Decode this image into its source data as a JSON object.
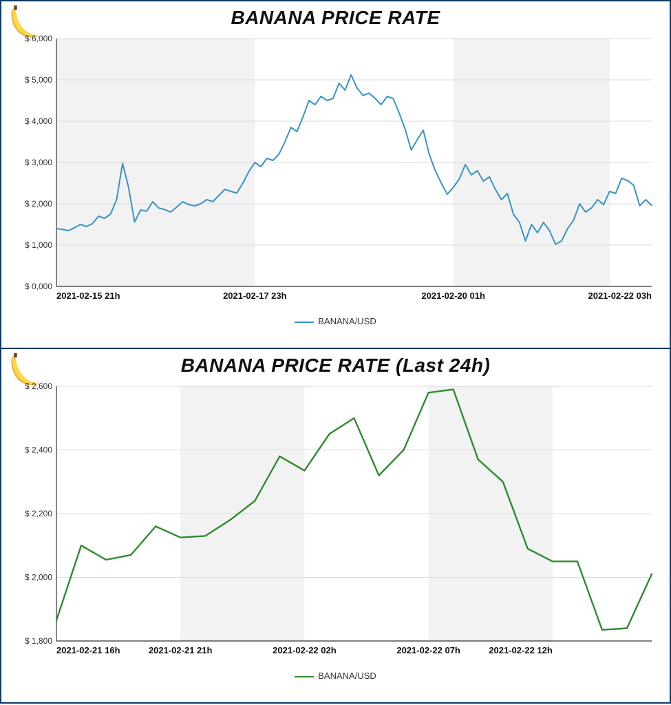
{
  "top_chart": {
    "title": "BANANA PRICE RATE",
    "type": "line",
    "legend_label": "BANANA/USD",
    "line_color": "#3a93c7",
    "line_width": 2,
    "background_color": "#ffffff",
    "alt_band_color": "#f2f2f2",
    "grid_color": "#d9d9d9",
    "axis_color": "#333333",
    "title_color": "#111111",
    "border_color": "#0d3b66",
    "y_label_prefix": "$ ",
    "ylim": [
      0,
      6000
    ],
    "ytick_step": 1000,
    "ytick_labels": [
      "0,000",
      "1,000",
      "2,000",
      "3,000",
      "4,000",
      "5,000",
      "6,000"
    ],
    "y_fontsize": 12,
    "x_fontsize": 13,
    "title_fontsize": 28,
    "num_points": 100,
    "xlim": [
      0,
      99
    ],
    "xticks": [
      {
        "pos": 0,
        "label": "2021-02-15 21h"
      },
      {
        "pos": 33,
        "label": "2021-02-17 23h"
      },
      {
        "pos": 66,
        "label": "2021-02-20 01h"
      },
      {
        "pos": 99,
        "label": "2021-02-22 03h"
      }
    ],
    "bands": [
      {
        "start": 0,
        "end": 33,
        "shaded": true
      },
      {
        "start": 33,
        "end": 66,
        "shaded": false
      },
      {
        "start": 66,
        "end": 92,
        "shaded": true
      },
      {
        "start": 92,
        "end": 99,
        "shaded": false
      }
    ],
    "values": [
      1400,
      1380,
      1350,
      1420,
      1500,
      1450,
      1520,
      1700,
      1650,
      1750,
      2100,
      2980,
      2400,
      1560,
      1850,
      1820,
      2050,
      1900,
      1860,
      1800,
      1920,
      2050,
      1980,
      1950,
      2000,
      2100,
      2050,
      2200,
      2350,
      2300,
      2260,
      2500,
      2780,
      3000,
      2900,
      3100,
      3050,
      3200,
      3500,
      3850,
      3750,
      4100,
      4500,
      4400,
      4600,
      4500,
      4550,
      4920,
      4750,
      5120,
      4800,
      4620,
      4680,
      4550,
      4400,
      4600,
      4550,
      4200,
      3800,
      3300,
      3550,
      3780,
      3200,
      2800,
      2500,
      2230,
      2400,
      2600,
      2950,
      2700,
      2800,
      2550,
      2650,
      2350,
      2100,
      2250,
      1750,
      1550,
      1100,
      1500,
      1300,
      1550,
      1350,
      1020,
      1100,
      1400,
      1600,
      2000,
      1800,
      1900,
      2100,
      1980,
      2300,
      2250,
      2620,
      2560,
      2450,
      1950,
      2100,
      1960
    ]
  },
  "bottom_chart": {
    "title": "BANANA PRICE RATE (Last 24h)",
    "type": "line",
    "legend_label": "BANANA/USD",
    "line_color": "#2e8b2e",
    "line_width": 2.4,
    "background_color": "#ffffff",
    "alt_band_color": "#f2f2f2",
    "grid_color": "#d9d9d9",
    "axis_color": "#333333",
    "title_color": "#111111",
    "border_color": "#0d3b66",
    "y_label_prefix": "$ ",
    "ylim": [
      1800,
      2600
    ],
    "ytick_step": 200,
    "ytick_labels": [
      "1,800",
      "2,000",
      "2,200",
      "2,400",
      "2,600"
    ],
    "y_fontsize": 12,
    "x_fontsize": 13,
    "title_fontsize": 28,
    "num_points": 25,
    "xlim": [
      0,
      24
    ],
    "xticks": [
      {
        "pos": 0,
        "label": "2021-02-21 16h"
      },
      {
        "pos": 5,
        "label": "2021-02-21 21h"
      },
      {
        "pos": 10,
        "label": "2021-02-22 02h"
      },
      {
        "pos": 15,
        "label": "2021-02-22 07h"
      },
      {
        "pos": 20,
        "label": "2021-02-22 12h"
      }
    ],
    "bands": [
      {
        "start": 0,
        "end": 5,
        "shaded": false
      },
      {
        "start": 5,
        "end": 10,
        "shaded": true
      },
      {
        "start": 10,
        "end": 15,
        "shaded": false
      },
      {
        "start": 15,
        "end": 20,
        "shaded": true
      },
      {
        "start": 20,
        "end": 24,
        "shaded": false
      }
    ],
    "values": [
      1865,
      2100,
      2055,
      2070,
      2160,
      2125,
      2130,
      2180,
      2240,
      2380,
      2335,
      2450,
      2500,
      2320,
      2400,
      2580,
      2590,
      2370,
      2300,
      2090,
      2050,
      2050,
      1835,
      1840,
      2010
    ]
  },
  "icon": {
    "name": "banana-icon",
    "body_color": "#ffd54a",
    "shadow_color": "#e6b93a",
    "tip_color": "#6b4a1f"
  }
}
